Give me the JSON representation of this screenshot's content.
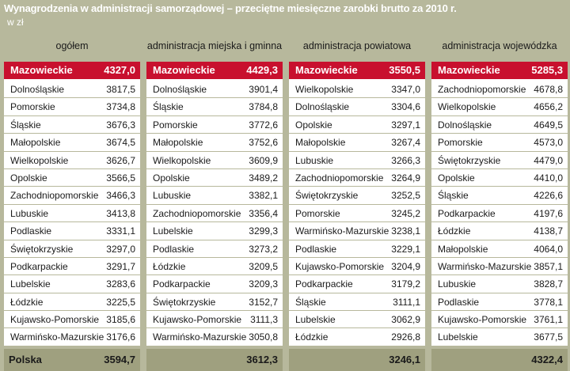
{
  "header": {
    "title": "Wynagrodzenia w administracji samorządowej – przeciętne miesięczne zarobki brutto za 2010 r.",
    "subtitle": "w zł"
  },
  "chart_data": {
    "type": "table",
    "columns": [
      {
        "name": "ogółem",
        "rows": [
          {
            "region": "Mazowieckie",
            "value": "4327,0"
          },
          {
            "region": "Dolnośląskie",
            "value": "3817,5"
          },
          {
            "region": "Pomorskie",
            "value": "3734,8"
          },
          {
            "region": "Śląskie",
            "value": "3676,3"
          },
          {
            "region": "Małopolskie",
            "value": "3674,5"
          },
          {
            "region": "Wielkopolskie",
            "value": "3626,7"
          },
          {
            "region": "Opolskie",
            "value": "3566,5"
          },
          {
            "region": "Zachodniopomorskie",
            "value": "3466,3"
          },
          {
            "region": "Lubuskie",
            "value": "3413,8"
          },
          {
            "region": "Podlaskie",
            "value": "3331,1"
          },
          {
            "region": "Świętokrzyskie",
            "value": "3297,0"
          },
          {
            "region": "Podkarpackie",
            "value": "3291,7"
          },
          {
            "region": "Lubelskie",
            "value": "3283,6"
          },
          {
            "region": "Łódzkie",
            "value": "3225,5"
          },
          {
            "region": "Kujawsko-Pomorskie",
            "value": "3185,6"
          },
          {
            "region": "Warmińsko-Mazurskie",
            "value": "3176,6"
          }
        ],
        "total_label": "Polska",
        "total": "3594,7"
      },
      {
        "name": "administracja miejska i gminna",
        "rows": [
          {
            "region": "Mazowieckie",
            "value": "4429,3"
          },
          {
            "region": "Dolnośląskie",
            "value": "3901,4"
          },
          {
            "region": "Śląskie",
            "value": "3784,8"
          },
          {
            "region": "Pomorskie",
            "value": "3772,6"
          },
          {
            "region": "Małopolskie",
            "value": "3752,6"
          },
          {
            "region": "Wielkopolskie",
            "value": "3609,9"
          },
          {
            "region": "Opolskie",
            "value": "3489,2"
          },
          {
            "region": "Lubuskie",
            "value": "3382,1"
          },
          {
            "region": "Zachodniopomorskie",
            "value": "3356,4"
          },
          {
            "region": "Lubelskie",
            "value": "3299,3"
          },
          {
            "region": "Podlaskie",
            "value": "3273,2"
          },
          {
            "region": "Łódzkie",
            "value": "3209,5"
          },
          {
            "region": "Podkarpackie",
            "value": "3209,3"
          },
          {
            "region": "Świętokrzyskie",
            "value": "3152,7"
          },
          {
            "region": "Kujawsko-Pomorskie",
            "value": "3111,3"
          },
          {
            "region": "Warmińsko-Mazurskie",
            "value": "3050,8"
          }
        ],
        "total_label": "",
        "total": "3612,3"
      },
      {
        "name": "administracja powiatowa",
        "rows": [
          {
            "region": "Mazowieckie",
            "value": "3550,5"
          },
          {
            "region": "Wielkopolskie",
            "value": "3347,0"
          },
          {
            "region": "Dolnośląskie",
            "value": "3304,6"
          },
          {
            "region": "Opolskie",
            "value": "3297,1"
          },
          {
            "region": "Małopolskie",
            "value": "3267,4"
          },
          {
            "region": "Lubuskie",
            "value": "3266,3"
          },
          {
            "region": "Zachodniopomorskie",
            "value": "3264,9"
          },
          {
            "region": "Świętokrzyskie",
            "value": "3252,5"
          },
          {
            "region": "Pomorskie",
            "value": "3245,2"
          },
          {
            "region": "Warmińsko-Mazurskie",
            "value": "3238,1"
          },
          {
            "region": "Podlaskie",
            "value": "3229,1"
          },
          {
            "region": "Kujawsko-Pomorskie",
            "value": "3204,9"
          },
          {
            "region": "Podkarpackie",
            "value": "3179,2"
          },
          {
            "region": "Śląskie",
            "value": "3111,1"
          },
          {
            "region": "Lubelskie",
            "value": "3062,9"
          },
          {
            "region": "Łódzkie",
            "value": "2926,8"
          }
        ],
        "total_label": "",
        "total": "3246,1"
      },
      {
        "name": "administracja wojewódzka",
        "rows": [
          {
            "region": "Mazowieckie",
            "value": "5285,3"
          },
          {
            "region": "Zachodniopomorskie",
            "value": "4678,8"
          },
          {
            "region": "Wielkopolskie",
            "value": "4656,2"
          },
          {
            "region": "Dolnośląskie",
            "value": "4649,5"
          },
          {
            "region": "Pomorskie",
            "value": "4573,0"
          },
          {
            "region": "Świętokrzyskie",
            "value": "4479,0"
          },
          {
            "region": "Opolskie",
            "value": "4410,0"
          },
          {
            "region": "Śląskie",
            "value": "4226,6"
          },
          {
            "region": "Podkarpackie",
            "value": "4197,6"
          },
          {
            "region": "Łódzkie",
            "value": "4138,7"
          },
          {
            "region": "Małopolskie",
            "value": "4064,0"
          },
          {
            "region": "Warmińsko-Mazurskie",
            "value": "3857,1"
          },
          {
            "region": "Lubuskie",
            "value": "3828,7"
          },
          {
            "region": "Podlaskie",
            "value": "3778,1"
          },
          {
            "region": "Kujawsko-Pomorskie",
            "value": "3761,1"
          },
          {
            "region": "Lubelskie",
            "value": "3677,5"
          }
        ],
        "total_label": "",
        "total": "4322,4"
      }
    ]
  },
  "colors": {
    "background": "#b7b89c",
    "highlight": "#c8102e",
    "total_band": "#9fa07f",
    "cell": "#ffffff"
  }
}
